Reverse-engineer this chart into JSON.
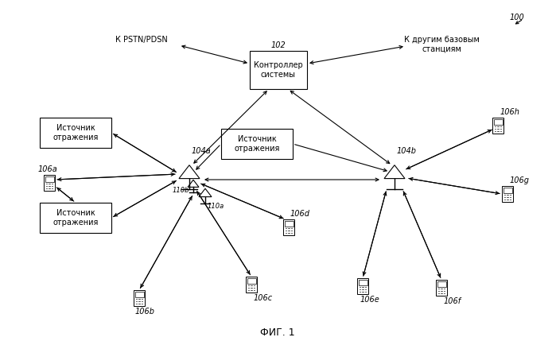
{
  "title": "ФИГ. 1",
  "fig_number": "100",
  "controller_label": "Контроллер\nсистемы",
  "controller_ref": "102",
  "bs_left_ref": "104a",
  "bs_right_ref": "104b",
  "pstn_label": "К PSTN/PDSN",
  "other_bs_label": "К другим базовым\nстанциям",
  "reflection_src_label": "Источник\nотражения",
  "ant_labels": [
    "110a",
    "110b"
  ],
  "mobile_labels": [
    "106a",
    "106b",
    "106c",
    "106d",
    "106e",
    "106f",
    "106g",
    "106h"
  ],
  "bg_color": "#ffffff",
  "line_color": "#000000",
  "font_size": 8,
  "label_font_size": 7
}
